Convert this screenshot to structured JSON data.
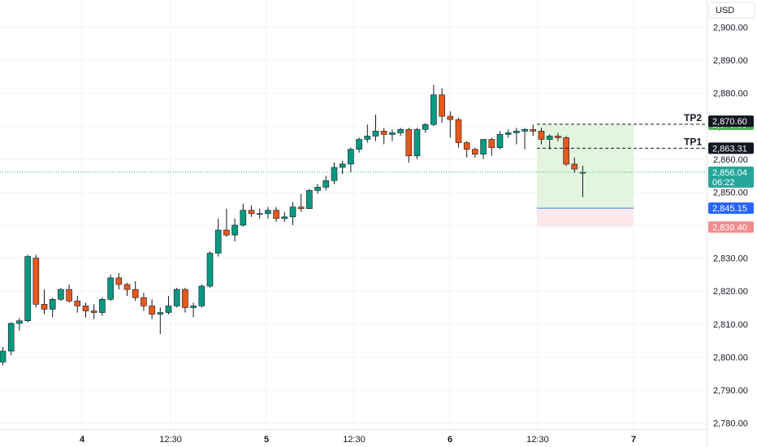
{
  "chart_data": {
    "type": "candlestick",
    "currency": "USD",
    "y_ticks": [
      "2,780.00",
      "2,790.00",
      "2,800.00",
      "2,810.00",
      "2,820.00",
      "2,830.00",
      "2,840.00",
      "2,850.00",
      "2,860.00",
      "2,870.00",
      "2,880.00",
      "2,890.00",
      "2,900.00"
    ],
    "x_ticks": [
      {
        "label": "4",
        "bold": true
      },
      {
        "label": "12:30",
        "bold": false
      },
      {
        "label": "5",
        "bold": true
      },
      {
        "label": "12:30",
        "bold": false
      },
      {
        "label": "6",
        "bold": true
      },
      {
        "label": "12:30",
        "bold": false
      },
      {
        "label": "7",
        "bold": true
      }
    ],
    "candles": [
      [
        2798.5,
        2803.0,
        2797.5,
        2801.8
      ],
      [
        2801.8,
        2810.5,
        2800.5,
        2810.2
      ],
      [
        2810.2,
        2811.8,
        2808.0,
        2811.0
      ],
      [
        2811.0,
        2831.0,
        2810.5,
        2830.5
      ],
      [
        2830.0,
        2831.0,
        2815.0,
        2816.0
      ],
      [
        2816.0,
        2820.5,
        2813.0,
        2814.5
      ],
      [
        2814.5,
        2818.0,
        2812.0,
        2817.5
      ],
      [
        2817.5,
        2821.0,
        2817.0,
        2820.5
      ],
      [
        2820.5,
        2822.0,
        2816.5,
        2817.0
      ],
      [
        2817.0,
        2818.5,
        2813.5,
        2815.5
      ],
      [
        2815.5,
        2816.5,
        2812.0,
        2814.0
      ],
      [
        2814.0,
        2816.0,
        2811.5,
        2813.5
      ],
      [
        2813.5,
        2818.0,
        2812.5,
        2817.5
      ],
      [
        2817.5,
        2825.0,
        2817.0,
        2824.0
      ],
      [
        2824.0,
        2825.5,
        2820.5,
        2822.0
      ],
      [
        2822.0,
        2822.5,
        2818.5,
        2820.5
      ],
      [
        2820.5,
        2823.0,
        2817.0,
        2818.0
      ],
      [
        2818.0,
        2819.5,
        2814.0,
        2815.5
      ],
      [
        2815.5,
        2817.5,
        2811.5,
        2813.0
      ],
      [
        2813.0,
        2815.0,
        2807.0,
        2813.5
      ],
      [
        2813.5,
        2818.5,
        2813.0,
        2815.5
      ],
      [
        2815.5,
        2821.0,
        2815.0,
        2820.5
      ],
      [
        2820.5,
        2821.0,
        2813.5,
        2815.0
      ],
      [
        2815.0,
        2816.5,
        2812.0,
        2815.5
      ],
      [
        2815.5,
        2822.0,
        2815.0,
        2821.5
      ],
      [
        2821.5,
        2832.0,
        2821.0,
        2831.5
      ],
      [
        2831.5,
        2842.0,
        2830.5,
        2838.5
      ],
      [
        2838.5,
        2845.0,
        2836.5,
        2837.0
      ],
      [
        2837.0,
        2842.0,
        2835.0,
        2840.0
      ],
      [
        2840.0,
        2846.5,
        2839.5,
        2844.5
      ],
      [
        2844.5,
        2846.0,
        2842.5,
        2843.5
      ],
      [
        2843.5,
        2845.0,
        2842.0,
        2843.5
      ],
      [
        2843.5,
        2845.5,
        2842.0,
        2844.5
      ],
      [
        2844.5,
        2845.5,
        2841.0,
        2842.0
      ],
      [
        2842.0,
        2844.0,
        2841.0,
        2842.5
      ],
      [
        2842.5,
        2847.0,
        2840.0,
        2845.5
      ],
      [
        2845.5,
        2849.5,
        2844.0,
        2845.0
      ],
      [
        2845.0,
        2851.0,
        2845.0,
        2850.5
      ],
      [
        2850.5,
        2852.5,
        2849.5,
        2851.5
      ],
      [
        2851.5,
        2855.0,
        2850.5,
        2853.5
      ],
      [
        2853.5,
        2859.0,
        2852.5,
        2857.5
      ],
      [
        2857.5,
        2859.5,
        2855.5,
        2858.5
      ],
      [
        2858.5,
        2863.5,
        2856.0,
        2863.0
      ],
      [
        2863.0,
        2866.5,
        2862.0,
        2866.0
      ],
      [
        2866.0,
        2870.5,
        2865.0,
        2867.0
      ],
      [
        2867.0,
        2873.5,
        2865.5,
        2868.5
      ],
      [
        2868.5,
        2869.5,
        2864.5,
        2867.5
      ],
      [
        2867.5,
        2869.0,
        2865.5,
        2868.0
      ],
      [
        2868.0,
        2869.5,
        2867.0,
        2869.0
      ],
      [
        2869.0,
        2869.5,
        2859.0,
        2861.0
      ],
      [
        2861.0,
        2869.5,
        2860.0,
        2869.0
      ],
      [
        2869.0,
        2871.0,
        2868.0,
        2870.5
      ],
      [
        2870.5,
        2882.5,
        2870.0,
        2879.5
      ],
      [
        2879.5,
        2881.5,
        2871.0,
        2873.0
      ],
      [
        2873.0,
        2874.5,
        2866.5,
        2872.0
      ],
      [
        2872.0,
        2872.5,
        2863.5,
        2865.0
      ],
      [
        2865.0,
        2865.5,
        2860.5,
        2863.0
      ],
      [
        2863.0,
        2863.5,
        2860.5,
        2861.5
      ],
      [
        2861.5,
        2866.0,
        2860.0,
        2866.0
      ],
      [
        2866.0,
        2866.5,
        2861.0,
        2863.5
      ],
      [
        2863.5,
        2868.5,
        2863.0,
        2867.5
      ],
      [
        2867.5,
        2869.0,
        2866.5,
        2868.0
      ],
      [
        2868.0,
        2869.5,
        2864.5,
        2868.5
      ],
      [
        2868.5,
        2869.5,
        2863.0,
        2869.0
      ],
      [
        2869.0,
        2870.5,
        2867.0,
        2868.5
      ],
      [
        2868.5,
        2869.5,
        2864.5,
        2866.0
      ],
      [
        2866.0,
        2867.5,
        2863.0,
        2867.0
      ],
      [
        2867.0,
        2868.0,
        2865.5,
        2866.5
      ],
      [
        2866.5,
        2867.0,
        2858.0,
        2858.5
      ],
      [
        2858.5,
        2860.5,
        2856.0,
        2857.0
      ],
      [
        2856.0,
        2858.0,
        2848.5,
        2856.0
      ]
    ],
    "last_price": {
      "value": 2856.04,
      "label": "2,856.04",
      "countdown": "06:22"
    },
    "position": {
      "entry": {
        "value": 2845.15,
        "label": "2,845.15"
      },
      "stop": {
        "value": 2839.4,
        "label": "2,839.40"
      },
      "target": {
        "value": 2870.6,
        "label": "2,870.60"
      }
    },
    "take_profits": [
      {
        "name": "TP2",
        "value": 2870.6,
        "label": "2,870.60"
      },
      {
        "name": "TP1",
        "value": 2863.31,
        "label": "2,863.31"
      }
    ],
    "colors": {
      "up": "#089981",
      "down": "#e8581a",
      "profit_zone": "#e3f5de",
      "loss_zone": "#fce8ea",
      "entry_line": "#3d7fd8",
      "target_tag": "#4caf50",
      "entry_tag": "#2962ff",
      "stop_tag": "#f28b8b",
      "last_tag": "#26a69a",
      "dark_tag": "#131722"
    }
  }
}
